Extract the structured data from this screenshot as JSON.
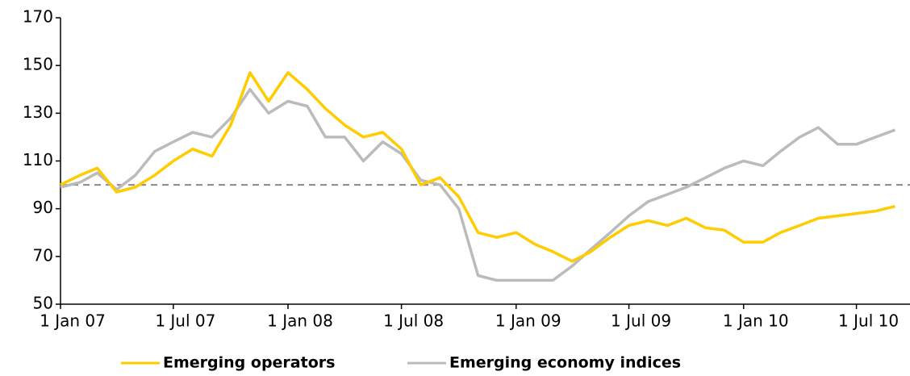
{
  "chart_data": {
    "type": "line",
    "x": [
      "2007-01-01",
      "2007-02-01",
      "2007-03-01",
      "2007-04-01",
      "2007-05-01",
      "2007-06-01",
      "2007-07-01",
      "2007-08-01",
      "2007-09-01",
      "2007-10-01",
      "2007-11-01",
      "2007-12-01",
      "2008-01-01",
      "2008-02-01",
      "2008-03-01",
      "2008-04-01",
      "2008-05-01",
      "2008-06-01",
      "2008-07-01",
      "2008-08-01",
      "2008-09-01",
      "2008-10-01",
      "2008-11-01",
      "2008-12-01",
      "2009-01-01",
      "2009-02-01",
      "2009-03-01",
      "2009-04-01",
      "2009-05-01",
      "2009-06-01",
      "2009-07-01",
      "2009-08-01",
      "2009-09-01",
      "2009-10-01",
      "2009-11-01",
      "2009-12-01",
      "2010-01-01",
      "2010-02-01",
      "2010-03-01",
      "2010-04-01",
      "2010-05-01",
      "2010-06-01",
      "2010-07-01",
      "2010-08-01",
      "2010-09-01"
    ],
    "series": [
      {
        "name": "Emerging operators",
        "color": "#ffcc00",
        "values": [
          100,
          104,
          107,
          97,
          99,
          104,
          110,
          115,
          112,
          125,
          147,
          135,
          147,
          140,
          132,
          125,
          120,
          122,
          115,
          100,
          103,
          95,
          80,
          78,
          80,
          75,
          72,
          68,
          72,
          78,
          83,
          85,
          83,
          86,
          82,
          81,
          76,
          76,
          80,
          83,
          86,
          87,
          88,
          89,
          91
        ]
      },
      {
        "name": "Emerging economy indices",
        "color": "#bbbbbb",
        "values": [
          99,
          101,
          105,
          98,
          104,
          114,
          118,
          122,
          120,
          128,
          140,
          130,
          135,
          133,
          120,
          120,
          110,
          118,
          113,
          102,
          100,
          90,
          62,
          60,
          60,
          60,
          60,
          66,
          73,
          80,
          87,
          93,
          96,
          99,
          103,
          107,
          110,
          108,
          114,
          120,
          124,
          117,
          117,
          120,
          123
        ]
      }
    ],
    "xlim": [
      "2007-01-01",
      "2010-09-25"
    ],
    "xticks": [
      {
        "value": "2007-01-01",
        "label": "1 Jan 07"
      },
      {
        "value": "2007-07-01",
        "label": "1 Jul 07"
      },
      {
        "value": "2008-01-01",
        "label": "1 Jan 08"
      },
      {
        "value": "2008-07-01",
        "label": "1 Jul 08"
      },
      {
        "value": "2009-01-01",
        "label": "1 Jan 09"
      },
      {
        "value": "2009-07-01",
        "label": "1 Jul 09"
      },
      {
        "value": "2010-01-01",
        "label": "1 Jan 10"
      },
      {
        "value": "2010-07-01",
        "label": "1 Jul 10"
      }
    ],
    "ylim": [
      50,
      170
    ],
    "yticks": [
      50,
      70,
      90,
      110,
      130,
      150,
      170
    ],
    "reference_line": 100,
    "legend": "bottom"
  }
}
